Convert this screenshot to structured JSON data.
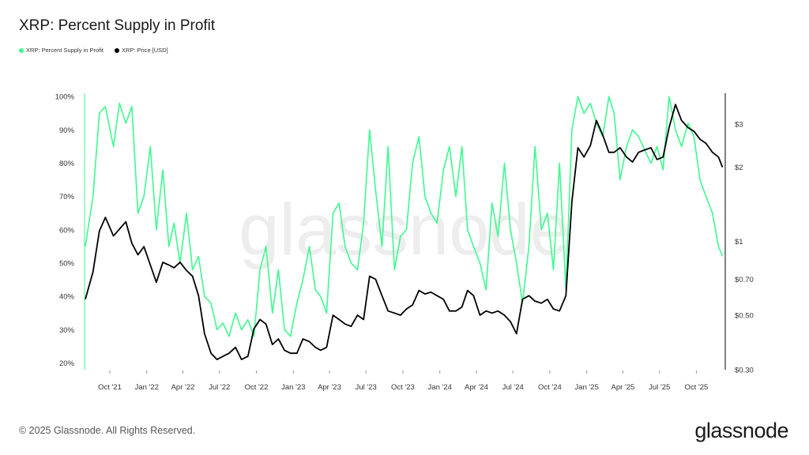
{
  "title": "XRP: Percent Supply in Profit",
  "footer": {
    "copyright": "© 2025 Glassnode. All Rights Reserved.",
    "brand": "glassnode"
  },
  "watermark": "glassnode",
  "colors": {
    "profit": "#3dfa8f",
    "price": "#000000",
    "axis": "#000000",
    "grid": "#e6e6e6"
  },
  "chart_data": {
    "type": "line",
    "title": "XRP: Percent Supply in Profit",
    "x_ticks": [
      "Oct '21",
      "Jan '22",
      "Apr '22",
      "Jul '22",
      "Oct '22",
      "Jan '23",
      "Apr '23",
      "Jul '23",
      "Oct '23",
      "Jan '24",
      "Apr '24",
      "Jul '24",
      "Oct '24",
      "Jan '25",
      "Apr '25",
      "Jul '25",
      "Oct '25"
    ],
    "y_left_ticks": [
      "20%",
      "30%",
      "40%",
      "50%",
      "60%",
      "70%",
      "80%",
      "90%",
      "100%"
    ],
    "y_left_range": [
      18,
      101
    ],
    "y_right_ticks": [
      "$0.30",
      "$0.50",
      "$0.70",
      "$1",
      "$2",
      "$3"
    ],
    "y_right_scale": "log",
    "y_right_range": [
      0.3,
      4.0
    ],
    "grid": false,
    "legend_position": "top-left",
    "series": [
      {
        "name": "XRP: Percent Supply in Profit",
        "axis": "left",
        "color": "#3dfa8f",
        "x": [
          "2021-08-01",
          "2021-08-20",
          "2021-09-05",
          "2021-09-20",
          "2021-10-10",
          "2021-10-25",
          "2021-11-10",
          "2021-11-25",
          "2021-12-10",
          "2021-12-25",
          "2022-01-10",
          "2022-01-25",
          "2022-02-10",
          "2022-02-25",
          "2022-03-10",
          "2022-03-25",
          "2022-04-10",
          "2022-04-25",
          "2022-05-10",
          "2022-05-25",
          "2022-06-10",
          "2022-06-25",
          "2022-07-10",
          "2022-07-25",
          "2022-08-10",
          "2022-08-25",
          "2022-09-10",
          "2022-09-25",
          "2022-10-10",
          "2022-10-25",
          "2022-11-10",
          "2022-11-25",
          "2022-12-10",
          "2022-12-25",
          "2023-01-10",
          "2023-01-25",
          "2023-02-10",
          "2023-02-25",
          "2023-03-10",
          "2023-03-25",
          "2023-04-10",
          "2023-04-25",
          "2023-05-10",
          "2023-05-25",
          "2023-06-10",
          "2023-06-25",
          "2023-07-10",
          "2023-07-25",
          "2023-08-10",
          "2023-08-25",
          "2023-09-10",
          "2023-09-25",
          "2023-10-10",
          "2023-10-25",
          "2023-11-10",
          "2023-11-25",
          "2023-12-10",
          "2023-12-25",
          "2024-01-10",
          "2024-01-25",
          "2024-02-10",
          "2024-02-25",
          "2024-03-10",
          "2024-03-25",
          "2024-04-10",
          "2024-04-25",
          "2024-05-10",
          "2024-05-25",
          "2024-06-10",
          "2024-06-25",
          "2024-07-10",
          "2024-07-25",
          "2024-08-10",
          "2024-08-25",
          "2024-09-10",
          "2024-09-25",
          "2024-10-10",
          "2024-10-25",
          "2024-11-10",
          "2024-11-25",
          "2024-12-10",
          "2024-12-25",
          "2025-01-10",
          "2025-01-25",
          "2025-02-10",
          "2025-02-25",
          "2025-03-10",
          "2025-03-25",
          "2025-04-10",
          "2025-04-25",
          "2025-05-10",
          "2025-05-25",
          "2025-06-10",
          "2025-06-25",
          "2025-07-10",
          "2025-07-25",
          "2025-08-10",
          "2025-08-25",
          "2025-09-10",
          "2025-09-25",
          "2025-10-10",
          "2025-10-25",
          "2025-11-10",
          "2025-11-25",
          "2025-12-05"
        ],
        "values": [
          55,
          70,
          95,
          97,
          85,
          98,
          92,
          97,
          65,
          70,
          85,
          60,
          78,
          55,
          62,
          50,
          65,
          48,
          52,
          40,
          38,
          30,
          32,
          28,
          35,
          30,
          33,
          28,
          48,
          55,
          35,
          48,
          30,
          28,
          38,
          45,
          55,
          42,
          40,
          35,
          65,
          68,
          55,
          50,
          48,
          62,
          90,
          72,
          55,
          85,
          48,
          58,
          60,
          80,
          88,
          70,
          65,
          62,
          78,
          85,
          70,
          85,
          60,
          55,
          50,
          42,
          68,
          58,
          80,
          60,
          50,
          38,
          55,
          85,
          60,
          65,
          48,
          80,
          42,
          90,
          100,
          95,
          98,
          92,
          88,
          100,
          95,
          75,
          85,
          90,
          88,
          84,
          80,
          85,
          78,
          100,
          90,
          85,
          92,
          88,
          75,
          70,
          65,
          55,
          52
        ]
      },
      {
        "name": "XRP: Price [USD]",
        "axis": "right",
        "color": "#000000",
        "x": [
          "2021-08-01",
          "2021-08-20",
          "2021-09-05",
          "2021-09-20",
          "2021-10-10",
          "2021-10-25",
          "2021-11-10",
          "2021-11-25",
          "2021-12-10",
          "2021-12-25",
          "2022-01-10",
          "2022-01-25",
          "2022-02-10",
          "2022-02-25",
          "2022-03-10",
          "2022-03-25",
          "2022-04-10",
          "2022-04-25",
          "2022-05-10",
          "2022-05-25",
          "2022-06-10",
          "2022-06-25",
          "2022-07-10",
          "2022-07-25",
          "2022-08-10",
          "2022-08-25",
          "2022-09-10",
          "2022-09-25",
          "2022-10-10",
          "2022-10-25",
          "2022-11-10",
          "2022-11-25",
          "2022-12-10",
          "2022-12-25",
          "2023-01-10",
          "2023-01-25",
          "2023-02-10",
          "2023-02-25",
          "2023-03-10",
          "2023-03-25",
          "2023-04-10",
          "2023-04-25",
          "2023-05-10",
          "2023-05-25",
          "2023-06-10",
          "2023-06-25",
          "2023-07-10",
          "2023-07-25",
          "2023-08-10",
          "2023-08-25",
          "2023-09-10",
          "2023-09-25",
          "2023-10-10",
          "2023-10-25",
          "2023-11-10",
          "2023-11-25",
          "2023-12-10",
          "2023-12-25",
          "2024-01-10",
          "2024-01-25",
          "2024-02-10",
          "2024-02-25",
          "2024-03-10",
          "2024-03-25",
          "2024-04-10",
          "2024-04-25",
          "2024-05-10",
          "2024-05-25",
          "2024-06-10",
          "2024-06-25",
          "2024-07-10",
          "2024-07-25",
          "2024-08-10",
          "2024-08-25",
          "2024-09-10",
          "2024-09-25",
          "2024-10-10",
          "2024-10-25",
          "2024-11-10",
          "2024-11-25",
          "2024-12-10",
          "2024-12-25",
          "2025-01-10",
          "2025-01-25",
          "2025-02-10",
          "2025-02-25",
          "2025-03-10",
          "2025-03-25",
          "2025-04-10",
          "2025-04-25",
          "2025-05-10",
          "2025-05-25",
          "2025-06-10",
          "2025-06-25",
          "2025-07-10",
          "2025-07-25",
          "2025-08-10",
          "2025-08-25",
          "2025-09-10",
          "2025-09-25",
          "2025-10-10",
          "2025-10-25",
          "2025-11-10",
          "2025-11-25",
          "2025-12-05"
        ],
        "values": [
          0.58,
          0.75,
          1.1,
          1.25,
          1.05,
          1.12,
          1.2,
          0.98,
          0.88,
          0.95,
          0.8,
          0.68,
          0.82,
          0.8,
          0.78,
          0.82,
          0.76,
          0.72,
          0.6,
          0.42,
          0.35,
          0.33,
          0.34,
          0.35,
          0.37,
          0.33,
          0.34,
          0.44,
          0.48,
          0.46,
          0.38,
          0.4,
          0.36,
          0.35,
          0.35,
          0.4,
          0.39,
          0.37,
          0.36,
          0.37,
          0.5,
          0.48,
          0.46,
          0.45,
          0.5,
          0.48,
          0.72,
          0.7,
          0.6,
          0.52,
          0.51,
          0.5,
          0.53,
          0.55,
          0.63,
          0.61,
          0.62,
          0.6,
          0.58,
          0.52,
          0.52,
          0.54,
          0.63,
          0.6,
          0.5,
          0.52,
          0.51,
          0.52,
          0.5,
          0.47,
          0.42,
          0.58,
          0.6,
          0.57,
          0.56,
          0.58,
          0.53,
          0.52,
          0.6,
          1.45,
          2.4,
          2.2,
          2.45,
          3.1,
          2.7,
          2.3,
          2.3,
          2.4,
          2.2,
          2.1,
          2.3,
          2.35,
          2.4,
          2.15,
          2.2,
          2.9,
          3.6,
          3.1,
          2.9,
          2.8,
          2.6,
          2.5,
          2.3,
          2.2,
          2.0
        ]
      }
    ]
  }
}
